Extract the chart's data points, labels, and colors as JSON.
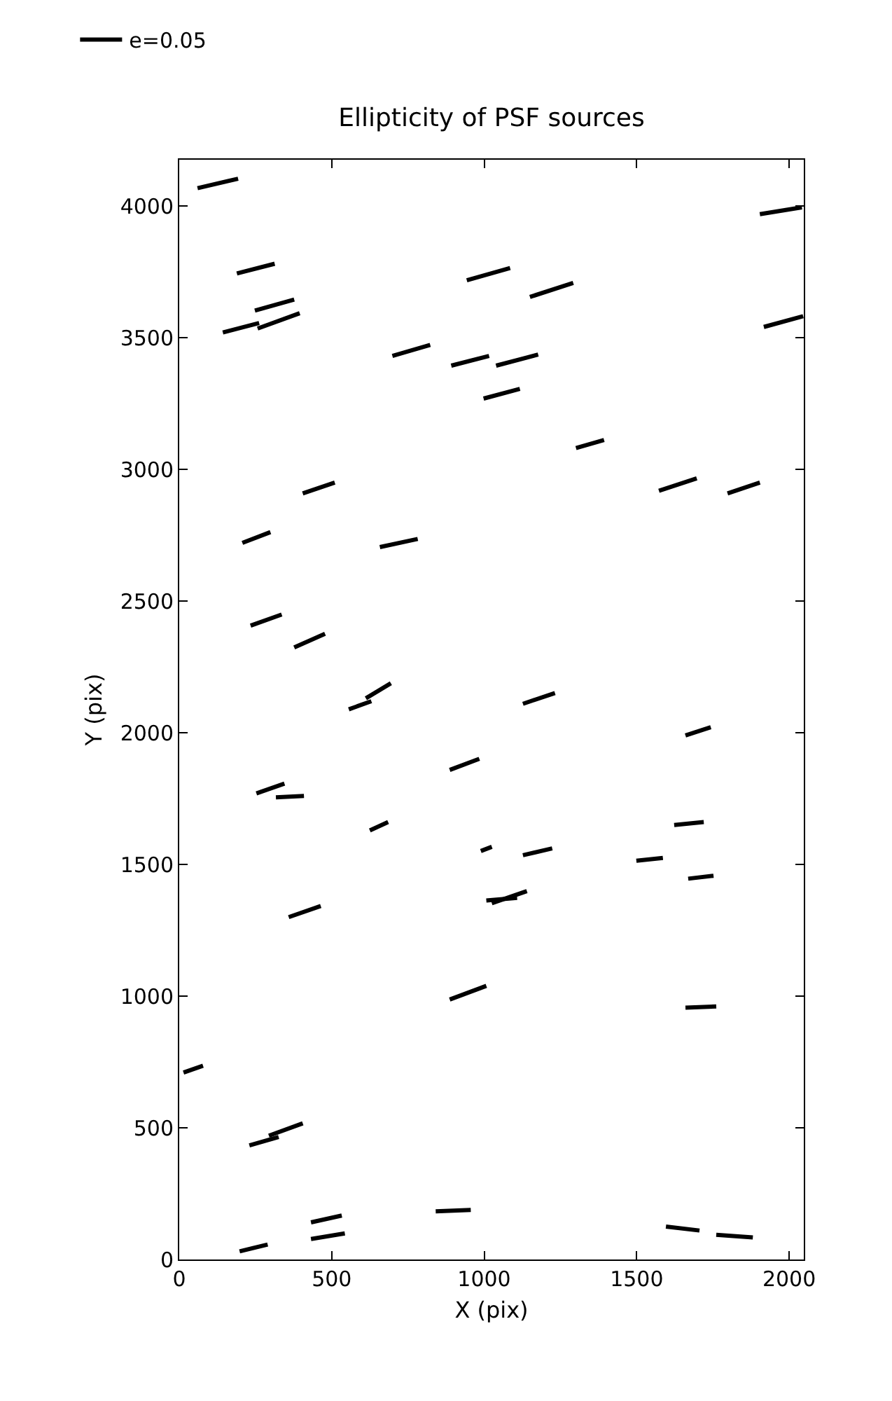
{
  "chart_data": {
    "type": "line",
    "title": "Ellipticity of PSF sources",
    "xlabel": "X (pix)",
    "ylabel": "Y (pix)",
    "xlim": [
      0,
      2048
    ],
    "ylim": [
      0,
      4176
    ],
    "xticks": [
      0,
      500,
      1000,
      1500,
      2000
    ],
    "yticks": [
      0,
      500,
      1000,
      1500,
      2000,
      2500,
      3000,
      3500,
      4000
    ],
    "grid": false,
    "legend": "top left",
    "marker": "none",
    "line_style": "solid",
    "series": [
      {
        "name": "e=0.05",
        "color": "#000000",
        "x": [
          60,
          193,
          null,
          1904,
          2042,
          null,
          189,
          313,
          null,
          943,
          1085,
          null,
          1150,
          1292,
          null,
          248,
          377,
          null,
          143,
          262,
          null,
          257,
          395,
          null,
          1917,
          2046,
          null,
          699,
          823,
          null,
          892,
          1016,
          null,
          1039,
          1177,
          null,
          998,
          1117,
          null,
          1301,
          1393,
          null,
          1573,
          1697,
          null,
          1798,
          1904,
          null,
          405,
          510,
          null,
          207,
          299,
          null,
          658,
          782,
          null,
          234,
          336,
          null,
          377,
          478,
          null,
          556,
          630,
          null,
          612,
          694,
          null,
          1127,
          1232,
          null,
          1660,
          1743,
          null,
          887,
          984,
          null,
          253,
          345,
          null,
          317,
          409,
          null,
          625,
          685,
          null,
          1623,
          1720,
          null,
          989,
          1025,
          null,
          1127,
          1223,
          null,
          1499,
          1586,
          null,
          1669,
          1752,
          null,
          359,
          464,
          null,
          1007,
          1108,
          null,
          1025,
          1140,
          null,
          887,
          1007,
          null,
          1660,
          1761,
          null,
          14,
          78,
          null,
          230,
          326,
          null,
          294,
          405,
          null,
          841,
          956,
          null,
          432,
          533,
          null,
          432,
          543,
          null,
          198,
          290,
          null,
          1596,
          1706,
          null,
          1761,
          1881
        ],
        "values": [
          4068,
          4104,
          null,
          3969,
          3995,
          null,
          3744,
          3781,
          null,
          3718,
          3765,
          null,
          3655,
          3708,
          null,
          3603,
          3645,
          null,
          3520,
          3556,
          null,
          3535,
          3593,
          null,
          3541,
          3582,
          null,
          3431,
          3473,
          null,
          3394,
          3431,
          null,
          3394,
          3436,
          null,
          3269,
          3306,
          null,
          3081,
          3112,
          null,
          2919,
          2966,
          null,
          2909,
          2950,
          null,
          2909,
          2950,
          null,
          2721,
          2762,
          null,
          2705,
          2736,
          null,
          2407,
          2449,
          null,
          2324,
          2376,
          null,
          2089,
          2120,
          null,
          2131,
          2188,
          null,
          2110,
          2151,
          null,
          1990,
          2021,
          null,
          1859,
          1901,
          null,
          1770,
          1807,
          null,
          1755,
          1760,
          null,
          1629,
          1661,
          null,
          1650,
          1661,
          null,
          1551,
          1567,
          null,
          1535,
          1561,
          null,
          1514,
          1525,
          null,
          1446,
          1457,
          null,
          1300,
          1342,
          null,
          1363,
          1373,
          null,
          1353,
          1399,
          null,
          987,
          1039,
          null,
          956,
          961,
          null,
          710,
          736,
          null,
          433,
          465,
          null,
          470,
          517,
          null,
          183,
          188,
          null,
          141,
          167,
          null,
          78,
          99,
          null,
          31,
          57,
          null,
          125,
          110,
          null,
          94,
          84
        ]
      }
    ]
  }
}
